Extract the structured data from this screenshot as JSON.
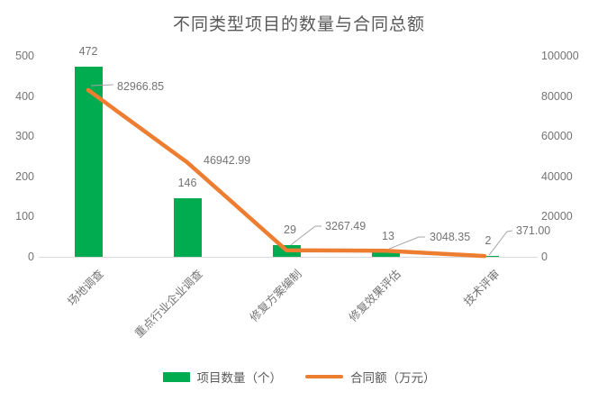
{
  "title": "不同类型项目的数量与合同总额",
  "colors": {
    "bar": "#00AC4F",
    "line": "#ED7D31",
    "text_gray": "#737373",
    "title_gray": "#595959",
    "axis_line": "#d9d9d9",
    "leader_line": "#a6a6a6",
    "background": "#ffffff"
  },
  "chart_data": {
    "type": "combo-bar-line",
    "title": "不同类型项目的数量与合同总额",
    "categories": [
      "场地调查",
      "重点行业企业调查",
      "修复方案编制",
      "修复效果评估",
      "技术评审"
    ],
    "series": [
      {
        "name": "项目数量（个）",
        "type": "bar",
        "axis": "left",
        "color": "#00AC4F",
        "values": [
          472,
          146,
          29,
          13,
          2
        ],
        "labels": [
          "472",
          "146",
          "29",
          "13",
          "2"
        ]
      },
      {
        "name": "合同额（万元）",
        "type": "line",
        "axis": "right",
        "color": "#ED7D31",
        "values": [
          82966.85,
          46942.99,
          3267.49,
          3048.35,
          371.0
        ],
        "labels": [
          "82966.85",
          "46942.99",
          "3267.49",
          "3048.35",
          "371.00"
        ]
      }
    ],
    "left_axis": {
      "label": "",
      "min": 0,
      "max": 500,
      "step": 100,
      "ticks": [
        "0",
        "100",
        "200",
        "300",
        "400",
        "500"
      ]
    },
    "right_axis": {
      "label": "",
      "min": 0,
      "max": 100000,
      "step": 20000,
      "ticks": [
        "0",
        "20000",
        "40000",
        "60000",
        "80000",
        "100000"
      ]
    },
    "grid": false,
    "legend_position": "bottom"
  }
}
